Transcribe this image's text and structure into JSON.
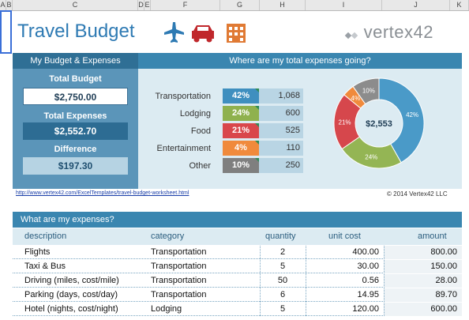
{
  "columns": [
    "A",
    "B",
    "C",
    "D",
    "E",
    "F",
    "G",
    "H",
    "I",
    "J",
    "K"
  ],
  "title": "Travel Budget",
  "logo": "vertex42",
  "left_panel": {
    "header": "My Budget & Expenses",
    "total_budget_label": "Total Budget",
    "total_budget": "$2,750.00",
    "total_expenses_label": "Total Expenses",
    "total_expenses": "$2,552.70",
    "difference_label": "Difference",
    "difference": "$197.30"
  },
  "right_panel": {
    "header": "Where are my total expenses going?",
    "categories": [
      {
        "name": "Transportation",
        "pct": "42%",
        "amount": "1,068",
        "color": "#3f8fbf"
      },
      {
        "name": "Lodging",
        "pct": "24%",
        "amount": "600",
        "color": "#8fb14e"
      },
      {
        "name": "Food",
        "pct": "21%",
        "amount": "525",
        "color": "#d9474b"
      },
      {
        "name": "Entertainment",
        "pct": "4%",
        "amount": "110",
        "color": "#f08a3c"
      },
      {
        "name": "Other",
        "pct": "10%",
        "amount": "250",
        "color": "#7f7f7f"
      }
    ]
  },
  "chart_data": {
    "type": "pie",
    "center_label": "$2,553",
    "labels": [
      "Transportation",
      "Lodging",
      "Food",
      "Entertainment",
      "Other"
    ],
    "values": [
      1068,
      600,
      525,
      110,
      250
    ],
    "slice_labels": [
      "42%",
      "24%",
      "21%",
      "4%",
      "10%"
    ],
    "colors": [
      "#4a9ac8",
      "#94b554",
      "#d6474c",
      "#f08a3c",
      "#8c8c8c"
    ]
  },
  "footer": {
    "url": "http://www.vertex42.com/ExcelTemplates/travel-budget-worksheet.html",
    "copyright": "© 2014 Vertex42 LLC"
  },
  "expenses": {
    "header": "What are my expenses?",
    "columns": {
      "description": "description",
      "category": "category",
      "quantity": "quantity",
      "unit_cost": "unit cost",
      "amount": "amount"
    },
    "rows": [
      {
        "description": "Flights",
        "category": "Transportation",
        "quantity": "2",
        "unit_cost": "400.00",
        "amount": "800.00"
      },
      {
        "description": "Taxi & Bus",
        "category": "Transportation",
        "quantity": "5",
        "unit_cost": "30.00",
        "amount": "150.00"
      },
      {
        "description": "Driving (miles, cost/mile)",
        "category": "Transportation",
        "quantity": "50",
        "unit_cost": "0.56",
        "amount": "28.00"
      },
      {
        "description": "Parking (days, cost/day)",
        "category": "Transportation",
        "quantity": "6",
        "unit_cost": "14.95",
        "amount": "89.70"
      },
      {
        "description": "Hotel (nights, cost/night)",
        "category": "Lodging",
        "quantity": "5",
        "unit_cost": "120.00",
        "amount": "600.00"
      }
    ]
  }
}
